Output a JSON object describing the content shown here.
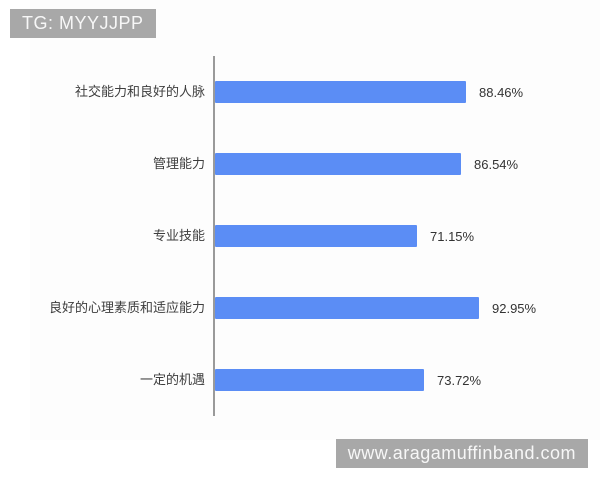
{
  "watermarks": {
    "top_left": "TG: MYYJJPP",
    "bottom_right": "www.aragamuffinband.com"
  },
  "chart_data": {
    "type": "bar",
    "orientation": "horizontal",
    "title": "",
    "xlabel": "",
    "ylabel": "",
    "categories": [
      "社交能力和良好的人脉",
      "管理能力",
      "专业技能",
      "良好的心理素质和适应能力",
      "一定的机遇"
    ],
    "values": [
      88.46,
      86.54,
      71.15,
      92.95,
      73.72
    ],
    "value_labels": [
      "88.46%",
      "86.54%",
      "71.15%",
      "92.95%",
      "73.72%"
    ],
    "xlim": [
      0,
      100
    ],
    "grid": false,
    "legend": false,
    "bar_color": "#5b8df5",
    "axis_line_color": "#9a9a9a",
    "label_color": "#3d3d3d",
    "value_label_color": "#333333",
    "watermark_bg_color": "#a8a8a8"
  }
}
